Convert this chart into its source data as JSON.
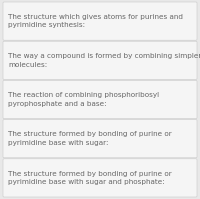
{
  "rows": [
    "The structure which gives atoms for purines and\npyrimidine synthesis:",
    "The way a compound is formed by combining simpler\nmolecules:",
    "The reaction of combining phosphoribosyl\npyrophosphate and a base:",
    "The structure formed by bonding of purine or\npyrimidine base with sugar:",
    "The structure formed by bonding of purine or\npyrimidine base with sugar and phosphate:"
  ],
  "bg_color": "#e8e8e8",
  "cell_bg": "#f5f5f5",
  "border_color": "#c8c8c8",
  "text_color": "#666666",
  "font_size": 5.2,
  "figsize": [
    2.0,
    1.99
  ],
  "dpi": 100
}
